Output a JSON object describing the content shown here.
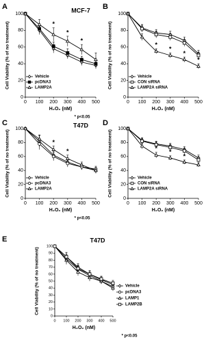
{
  "chart_data": [
    {
      "type": "line",
      "panel": "A",
      "title": "MCF-7",
      "y_label": "Cell Viability (% of no treatment)",
      "x_label": "H₂O₂  (nM)",
      "note": "* p<0.05",
      "sig_label": "*",
      "legend": "lower left",
      "x": [
        0,
        100,
        200,
        300,
        400,
        500
      ],
      "xlim": [
        0,
        500
      ],
      "xticks": [
        0,
        100,
        200,
        300,
        400,
        500
      ],
      "ylim": [
        0,
        100
      ],
      "yticks": [
        0,
        20,
        40,
        60,
        80,
        100
      ],
      "series": [
        {
          "name": "Vehicle",
          "color": "#000000",
          "marker": "diamond",
          "values": [
            100,
            80,
            58,
            50,
            42,
            38
          ],
          "errors": [
            0,
            5,
            5,
            4,
            4,
            4
          ],
          "significant": [
            false,
            false,
            false,
            false,
            false,
            false
          ]
        },
        {
          "name": "pcDNA3",
          "color": "#000000",
          "marker": "square-filled",
          "values": [
            100,
            82,
            61,
            53,
            45,
            40
          ],
          "errors": [
            0,
            5,
            5,
            5,
            4,
            4
          ],
          "significant": [
            false,
            false,
            false,
            false,
            false,
            false
          ]
        },
        {
          "name": "LAMP2A",
          "color": "#000000",
          "marker": "triangle",
          "values": [
            100,
            87,
            75,
            67,
            57,
            45
          ],
          "errors": [
            0,
            6,
            8,
            6,
            6,
            8
          ],
          "significant": [
            false,
            false,
            true,
            true,
            true,
            false
          ]
        }
      ]
    },
    {
      "type": "line",
      "panel": "B",
      "y_label": "Cell Viability (% of no treatment)",
      "x_label": "H₂O₂  (nM)",
      "sig_label": "*",
      "legend": "lower left",
      "x": [
        0,
        100,
        200,
        300,
        400,
        500
      ],
      "xlim": [
        0,
        500
      ],
      "xticks": [
        0,
        100,
        200,
        300,
        400,
        500
      ],
      "ylim": [
        0,
        100
      ],
      "yticks": [
        0,
        20,
        40,
        60,
        80,
        100
      ],
      "series": [
        {
          "name": "Vehicle",
          "color": "#000000",
          "marker": "diamond",
          "values": [
            100,
            83,
            77,
            75,
            68,
            52
          ],
          "errors": [
            0,
            4,
            4,
            4,
            4,
            4
          ],
          "significant": [
            false,
            false,
            false,
            false,
            false,
            false
          ]
        },
        {
          "name": "CON siRNA",
          "color": "#000000",
          "marker": "square",
          "values": [
            100,
            82,
            75,
            72,
            65,
            50
          ],
          "errors": [
            0,
            4,
            4,
            4,
            4,
            4
          ],
          "significant": [
            false,
            false,
            false,
            false,
            false,
            false
          ]
        },
        {
          "name": "LAMP2A siRNA",
          "color": "#000000",
          "marker": "triangle",
          "values": [
            100,
            72,
            55,
            50,
            45,
            37
          ],
          "errors": [
            0,
            4,
            3,
            3,
            3,
            3
          ],
          "significant": [
            false,
            false,
            true,
            true,
            true,
            true
          ]
        }
      ]
    },
    {
      "type": "line",
      "panel": "C",
      "title": "T47D",
      "y_label": "Cell Viability (% of no treatment)",
      "x_label": "H₂O₂  (nM)",
      "note": "* p<0.05",
      "sig_label": "*",
      "legend": "lower left",
      "x": [
        0,
        100,
        200,
        300,
        400,
        500
      ],
      "xlim": [
        0,
        500
      ],
      "xticks": [
        0,
        100,
        200,
        300,
        400,
        500
      ],
      "ylim": [
        0,
        100
      ],
      "yticks": [
        0,
        20,
        40,
        60,
        80,
        100
      ],
      "series": [
        {
          "name": "Vehicle",
          "color": "#000000",
          "marker": "diamond",
          "values": [
            100,
            82,
            62,
            52,
            45,
            40
          ],
          "errors": [
            0,
            8,
            6,
            5,
            4,
            4
          ],
          "significant": [
            false,
            false,
            false,
            false,
            false,
            false
          ]
        },
        {
          "name": "pcDNA3",
          "color": "#000000",
          "marker": "circle",
          "values": [
            100,
            78,
            60,
            50,
            45,
            42
          ],
          "errors": [
            0,
            8,
            6,
            5,
            4,
            4
          ],
          "significant": [
            false,
            false,
            false,
            false,
            false,
            false
          ]
        },
        {
          "name": "LAMP2A",
          "color": "#000000",
          "marker": "triangle",
          "values": [
            100,
            85,
            70,
            57,
            48,
            40
          ],
          "errors": [
            0,
            6,
            5,
            5,
            4,
            4
          ],
          "significant": [
            false,
            false,
            true,
            true,
            false,
            false
          ]
        }
      ]
    },
    {
      "type": "line",
      "panel": "D",
      "y_label": "Cell Viability (% of no treatment)",
      "x_label": "H₂O₂  (nM)",
      "sig_label": "*",
      "legend": "lower left",
      "x": [
        0,
        100,
        200,
        300,
        400,
        500
      ],
      "xlim": [
        0,
        500
      ],
      "xticks": [
        0,
        100,
        200,
        300,
        400,
        500
      ],
      "ylim": [
        0,
        100
      ],
      "yticks": [
        0,
        20,
        40,
        60,
        80,
        100
      ],
      "series": [
        {
          "name": "Vehicle",
          "color": "#000000",
          "marker": "diamond",
          "values": [
            100,
            83,
            78,
            75,
            70,
            58
          ],
          "errors": [
            0,
            4,
            4,
            4,
            4,
            4
          ],
          "significant": [
            false,
            false,
            false,
            false,
            false,
            false
          ]
        },
        {
          "name": "CON siRNA",
          "color": "#000000",
          "marker": "square",
          "values": [
            100,
            82,
            77,
            73,
            68,
            55
          ],
          "errors": [
            0,
            4,
            4,
            4,
            4,
            4
          ],
          "significant": [
            false,
            false,
            false,
            false,
            false,
            false
          ]
        },
        {
          "name": "LAMP2A siRNA",
          "color": "#000000",
          "marker": "triangle",
          "values": [
            100,
            75,
            62,
            58,
            52,
            48
          ],
          "errors": [
            0,
            4,
            4,
            3,
            3,
            3
          ],
          "significant": [
            false,
            false,
            true,
            true,
            true,
            false
          ]
        }
      ]
    },
    {
      "type": "line",
      "panel": "E",
      "title": "T47D",
      "y_label": "Cell Viability (% of no treatment)",
      "x_label": "H₂O₂  (nM)",
      "note": "* p<0.05",
      "legend": "right",
      "x": [
        0,
        100,
        200,
        300,
        400,
        500
      ],
      "xlim": [
        0,
        500
      ],
      "xticks": [
        0,
        100,
        200,
        300,
        400,
        500
      ],
      "ylim": [
        0,
        100
      ],
      "yticks": [
        0,
        10,
        20,
        30,
        40,
        50,
        60,
        70,
        80,
        90,
        100
      ],
      "series": [
        {
          "name": "Vehicle",
          "color": "#000000",
          "marker": "diamond",
          "values": [
            100,
            85,
            70,
            60,
            52,
            45
          ],
          "errors": [
            0,
            6,
            5,
            5,
            4,
            4
          ]
        },
        {
          "name": "pcDNA3",
          "color": "#000000",
          "marker": "circle",
          "values": [
            100,
            82,
            67,
            58,
            50,
            42
          ],
          "errors": [
            0,
            6,
            5,
            5,
            4,
            4
          ]
        },
        {
          "name": "LAMP1",
          "color": "#000000",
          "marker": "triangle",
          "values": [
            100,
            80,
            63,
            55,
            50,
            40
          ],
          "errors": [
            0,
            6,
            5,
            5,
            4,
            4
          ]
        },
        {
          "name": "LAMP2B",
          "color": "#000000",
          "marker": "square",
          "values": [
            100,
            85,
            68,
            60,
            53,
            47
          ],
          "errors": [
            0,
            6,
            5,
            5,
            4,
            4
          ]
        }
      ]
    }
  ]
}
